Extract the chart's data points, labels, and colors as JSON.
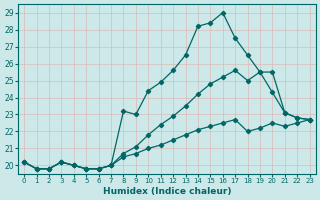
{
  "xlabel": "Humidex (Indice chaleur)",
  "bg_color": "#cce8e8",
  "grid_color": "#ddbbbb",
  "line_color": "#006666",
  "xlim": [
    -0.5,
    23.5
  ],
  "ylim": [
    19.5,
    29.5
  ],
  "yticks": [
    20,
    21,
    22,
    23,
    24,
    25,
    26,
    27,
    28,
    29
  ],
  "xticks": [
    0,
    1,
    2,
    3,
    4,
    5,
    6,
    7,
    8,
    9,
    10,
    11,
    12,
    13,
    14,
    15,
    16,
    17,
    18,
    19,
    20,
    21,
    22,
    23
  ],
  "line1_x": [
    0,
    1,
    2,
    3,
    4,
    5,
    6,
    7,
    8,
    9,
    10,
    11,
    12,
    13,
    14,
    15,
    16,
    17,
    18,
    19,
    20,
    21,
    22,
    23
  ],
  "line1_y": [
    20.2,
    19.8,
    19.8,
    20.2,
    20.0,
    19.8,
    19.8,
    20.0,
    23.2,
    23.0,
    24.4,
    24.9,
    25.6,
    26.5,
    28.2,
    28.4,
    29.0,
    27.5,
    26.5,
    25.5,
    24.3,
    23.1,
    22.8,
    22.7
  ],
  "line2_x": [
    0,
    1,
    2,
    3,
    4,
    5,
    6,
    7,
    8,
    9,
    10,
    11,
    12,
    13,
    14,
    15,
    16,
    17,
    18,
    19,
    20,
    21,
    22,
    23
  ],
  "line2_y": [
    20.2,
    19.8,
    19.8,
    20.2,
    20.0,
    19.8,
    19.8,
    20.0,
    20.7,
    21.1,
    21.8,
    22.4,
    22.9,
    23.5,
    24.2,
    24.8,
    25.2,
    25.6,
    25.0,
    25.5,
    25.5,
    23.1,
    22.8,
    22.7
  ],
  "line3_x": [
    0,
    1,
    2,
    3,
    4,
    5,
    6,
    7,
    8,
    9,
    10,
    11,
    12,
    13,
    14,
    15,
    16,
    17,
    18,
    19,
    20,
    21,
    22,
    23
  ],
  "line3_y": [
    20.2,
    19.8,
    19.8,
    20.2,
    20.0,
    19.8,
    19.8,
    20.0,
    20.5,
    20.7,
    21.0,
    21.2,
    21.5,
    21.8,
    22.1,
    22.3,
    22.5,
    22.7,
    22.0,
    22.2,
    22.5,
    22.3,
    22.5,
    22.7
  ]
}
